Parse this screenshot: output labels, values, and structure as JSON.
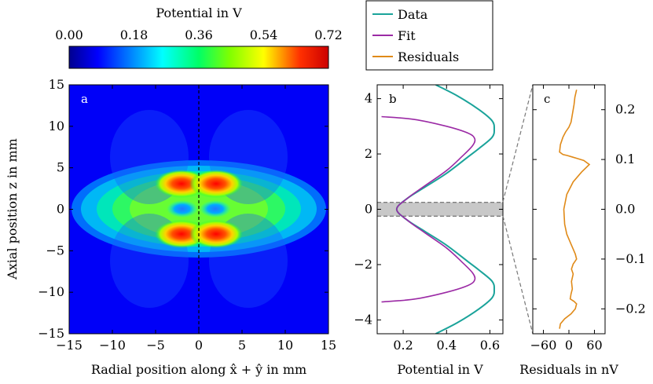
{
  "chart_data": [
    {
      "type": "heatmap",
      "panel_label": "a",
      "title": "",
      "xlabel": "Radial position along x̂ + ŷ in mm",
      "ylabel": "Axial position z in mm",
      "xlim": [
        -15,
        15
      ],
      "ylim": [
        -15,
        15
      ],
      "xticks": [
        -15,
        -10,
        -5,
        0,
        5,
        10,
        15
      ],
      "yticks": [
        -15,
        -10,
        -5,
        0,
        5,
        10,
        15
      ],
      "center_line": {
        "x": 0,
        "style": "dashed"
      },
      "colorbar": {
        "label": "Potential in V",
        "min": 0.0,
        "max": 0.72,
        "ticks": [
          "0.00",
          "0.18",
          "0.36",
          "0.54",
          "0.72"
        ],
        "colormap": "jet"
      },
      "features": [
        {
          "kind": "maximum",
          "x": -2.0,
          "z": 3.0,
          "value": 0.72
        },
        {
          "kind": "maximum",
          "x": 2.0,
          "z": 3.0,
          "value": 0.72
        },
        {
          "kind": "maximum",
          "x": -2.0,
          "z": -3.0,
          "value": 0.72
        },
        {
          "kind": "maximum",
          "x": 2.0,
          "z": -3.0,
          "value": 0.72
        },
        {
          "kind": "minimum",
          "x": -2.0,
          "z": 0.0,
          "value": 0.17
        },
        {
          "kind": "minimum",
          "x": 2.0,
          "z": 0.0,
          "value": 0.17
        }
      ]
    },
    {
      "type": "line",
      "panel_label": "b",
      "xlabel": "Potential in V",
      "ylabel": "",
      "xlim": [
        0.08,
        0.66
      ],
      "ylim": [
        -4.5,
        4.5
      ],
      "xticks": [
        "0.2",
        "0.4",
        "0.6"
      ],
      "yticks": [
        "-4",
        "-2",
        "0",
        "2",
        "4"
      ],
      "highlight_band": {
        "z_min": -0.25,
        "z_max": 0.25
      },
      "series": [
        {
          "name": "Data",
          "color": "#1aa39a",
          "x": [
            0.35,
            0.45,
            0.55,
            0.61,
            0.62,
            0.61,
            0.55,
            0.5,
            0.4,
            0.3,
            0.22,
            0.17,
            0.22,
            0.3,
            0.4,
            0.5,
            0.55,
            0.61,
            0.62,
            0.61,
            0.55,
            0.45,
            0.35
          ],
          "y": [
            4.5,
            4.1,
            3.6,
            3.2,
            2.9,
            2.6,
            2.2,
            1.9,
            1.3,
            0.8,
            0.4,
            0.0,
            -0.4,
            -0.8,
            -1.3,
            -1.9,
            -2.2,
            -2.6,
            -2.9,
            -3.2,
            -3.6,
            -4.1,
            -4.5
          ]
        },
        {
          "name": "Fit",
          "color": "#9b2aa5",
          "x": [
            0.1,
            0.25,
            0.4,
            0.5,
            0.53,
            0.52,
            0.47,
            0.4,
            0.3,
            0.22,
            0.17,
            0.22,
            0.3,
            0.4,
            0.47,
            0.52,
            0.53,
            0.5,
            0.4,
            0.25,
            0.1
          ],
          "y": [
            3.35,
            3.25,
            3.0,
            2.75,
            2.55,
            2.3,
            1.9,
            1.4,
            0.85,
            0.4,
            0.0,
            -0.4,
            -0.85,
            -1.4,
            -1.9,
            -2.3,
            -2.55,
            -2.75,
            -3.0,
            -3.25,
            -3.35
          ]
        }
      ]
    },
    {
      "type": "line",
      "panel_label": "c",
      "xlabel": "Residuals in nV",
      "ylabel": "",
      "xlim": [
        -85,
        85
      ],
      "ylim": [
        -0.25,
        0.25
      ],
      "xticks": [
        "-60",
        "0",
        "60"
      ],
      "yticks": [
        "-0.2",
        "-0.1",
        "0.0",
        "0.1",
        "0.2"
      ],
      "series": [
        {
          "name": "Residuals",
          "color": "#e08a18",
          "x": [
            18,
            14,
            12,
            8,
            5,
            0,
            -8,
            -14,
            -20,
            -22,
            -14,
            -4,
            8,
            20,
            35,
            48,
            30,
            10,
            -5,
            -12,
            -10,
            -5,
            0,
            5,
            10,
            15,
            18,
            10,
            6,
            10,
            6,
            8,
            5,
            3,
            12,
            18,
            15,
            5,
            -10,
            -20,
            -22
          ],
          "y": [
            0.24,
            0.225,
            0.21,
            0.19,
            0.175,
            0.165,
            0.155,
            0.145,
            0.13,
            0.115,
            0.11,
            0.108,
            0.105,
            0.102,
            0.098,
            0.09,
            0.075,
            0.055,
            0.03,
            0.0,
            -0.03,
            -0.05,
            -0.06,
            -0.07,
            -0.08,
            -0.09,
            -0.1,
            -0.11,
            -0.12,
            -0.13,
            -0.145,
            -0.16,
            -0.17,
            -0.18,
            -0.185,
            -0.19,
            -0.2,
            -0.21,
            -0.22,
            -0.23,
            -0.24
          ]
        }
      ]
    }
  ],
  "legend": {
    "placement": "top-center",
    "entries": [
      {
        "label": "Data",
        "color": "#1aa39a"
      },
      {
        "label": "Fit",
        "color": "#9b2aa5"
      },
      {
        "label": "Residuals",
        "color": "#e08a18"
      }
    ]
  }
}
